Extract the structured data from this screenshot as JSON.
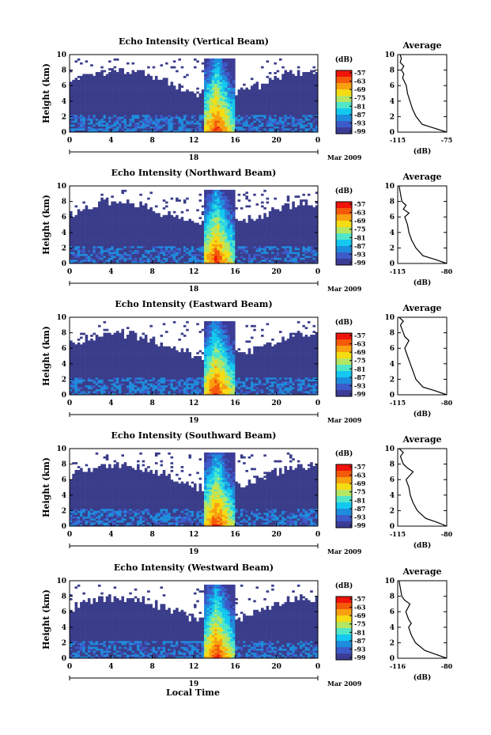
{
  "figure": {
    "bottom_label": "Local Time",
    "date_label": "Mar 2009",
    "colorbar_unit": "(dB)",
    "colorbar_ticks": [
      "-57",
      "-63",
      "-69",
      "-75",
      "-81",
      "-87",
      "-93",
      "-99"
    ],
    "colorscale": [
      "#f0140a",
      "#f55a0a",
      "#f8a010",
      "#f5dc14",
      "#b4e664",
      "#50e6c8",
      "#14c8f0",
      "#1e8cdc",
      "#3c5ac8",
      "#3c3c96"
    ],
    "background_echo": "#3a3d8a",
    "average_title": "Average",
    "average_xlabel": "(dB)"
  },
  "chart_data": [
    {
      "type": "heatmap",
      "title": "Echo Intensity (Vertical Beam)",
      "ylabel": "Height (km)",
      "x_ticks": [
        "0",
        "4",
        "8",
        "12",
        "16",
        "20",
        "0"
      ],
      "y_ticks": [
        "0",
        "2",
        "4",
        "6",
        "8",
        "10"
      ],
      "xlim": [
        0,
        24
      ],
      "ylim": [
        0,
        10
      ],
      "day_label": "18",
      "zlim_db": [
        -99,
        -57
      ],
      "storm_hours": [
        13,
        16
      ],
      "average": {
        "x_ticks": [
          "-115",
          "-75"
        ],
        "xlim": [
          -115,
          -75
        ],
        "y_ticks": [
          "0",
          "2",
          "4",
          "6",
          "8",
          "10"
        ],
        "profile": [
          [
            0,
            -75
          ],
          [
            0.5,
            -85
          ],
          [
            1,
            -95
          ],
          [
            2,
            -100
          ],
          [
            3,
            -103
          ],
          [
            4,
            -105
          ],
          [
            5,
            -107
          ],
          [
            6,
            -108
          ],
          [
            7,
            -111
          ],
          [
            7.5,
            -110
          ],
          [
            8,
            -112
          ],
          [
            8.5,
            -110
          ],
          [
            9,
            -113
          ],
          [
            9.5,
            -112
          ],
          [
            10,
            -113
          ]
        ]
      }
    },
    {
      "type": "heatmap",
      "title": "Echo Intensity (Northward Beam)",
      "ylabel": "Height (km)",
      "x_ticks": [
        "0",
        "4",
        "8",
        "12",
        "16",
        "20",
        "0"
      ],
      "y_ticks": [
        "0",
        "2",
        "4",
        "6",
        "8",
        "10"
      ],
      "xlim": [
        0,
        24
      ],
      "ylim": [
        0,
        10
      ],
      "day_label": "18",
      "zlim_db": [
        -99,
        -57
      ],
      "storm_hours": [
        13,
        16
      ],
      "average": {
        "x_ticks": [
          "-115",
          "-80"
        ],
        "xlim": [
          -115,
          -80
        ],
        "y_ticks": [
          "0",
          "2",
          "4",
          "6",
          "8",
          "10"
        ],
        "profile": [
          [
            0,
            -80
          ],
          [
            0.5,
            -88
          ],
          [
            1,
            -97
          ],
          [
            2,
            -102
          ],
          [
            3,
            -105
          ],
          [
            4,
            -107
          ],
          [
            5,
            -108
          ],
          [
            6,
            -110
          ],
          [
            6.5,
            -107
          ],
          [
            7,
            -111
          ],
          [
            7.5,
            -109
          ],
          [
            8,
            -112
          ],
          [
            9,
            -113
          ],
          [
            10,
            -114
          ]
        ]
      }
    },
    {
      "type": "heatmap",
      "title": "Echo Intensity (Eastward Beam)",
      "ylabel": "Height (km)",
      "x_ticks": [
        "0",
        "4",
        "8",
        "12",
        "16",
        "20",
        "0"
      ],
      "y_ticks": [
        "0",
        "2",
        "4",
        "6",
        "8",
        "10"
      ],
      "xlim": [
        0,
        24
      ],
      "ylim": [
        0,
        10
      ],
      "day_label": "19",
      "zlim_db": [
        -99,
        -57
      ],
      "storm_hours": [
        13,
        16
      ],
      "average": {
        "x_ticks": [
          "-115",
          "-80"
        ],
        "xlim": [
          -115,
          -80
        ],
        "y_ticks": [
          "0",
          "2",
          "4",
          "6",
          "8",
          "10"
        ],
        "profile": [
          [
            0,
            -80
          ],
          [
            0.5,
            -88
          ],
          [
            1,
            -97
          ],
          [
            2,
            -102
          ],
          [
            3,
            -104
          ],
          [
            4,
            -106
          ],
          [
            5,
            -108
          ],
          [
            6,
            -110
          ],
          [
            7,
            -107
          ],
          [
            7.5,
            -110
          ],
          [
            8,
            -111
          ],
          [
            9,
            -113
          ],
          [
            9.5,
            -111
          ],
          [
            10,
            -114
          ]
        ]
      }
    },
    {
      "type": "heatmap",
      "title": "Echo Intensity (Southward Beam)",
      "ylabel": "Height (km)",
      "x_ticks": [
        "0",
        "4",
        "8",
        "12",
        "16",
        "20",
        "0"
      ],
      "y_ticks": [
        "0",
        "2",
        "4",
        "6",
        "8",
        "10"
      ],
      "xlim": [
        0,
        24
      ],
      "ylim": [
        0,
        10
      ],
      "day_label": "19",
      "zlim_db": [
        -99,
        -57
      ],
      "storm_hours": [
        13,
        16
      ],
      "average": {
        "x_ticks": [
          "-115",
          "-80"
        ],
        "xlim": [
          -115,
          -80
        ],
        "y_ticks": [
          "0",
          "2",
          "4",
          "6",
          "8",
          "10"
        ],
        "profile": [
          [
            0,
            -80
          ],
          [
            0.5,
            -87
          ],
          [
            1,
            -95
          ],
          [
            2,
            -101
          ],
          [
            3,
            -104
          ],
          [
            4,
            -106
          ],
          [
            5,
            -107
          ],
          [
            6,
            -109
          ],
          [
            7,
            -104
          ],
          [
            7.5,
            -108
          ],
          [
            8,
            -111
          ],
          [
            9,
            -113
          ],
          [
            9.5,
            -111
          ],
          [
            10,
            -114
          ]
        ]
      }
    },
    {
      "type": "heatmap",
      "title": "Echo Intensity (Westward Beam)",
      "ylabel": "Height (km)",
      "x_ticks": [
        "0",
        "4",
        "8",
        "12",
        "16",
        "20",
        "0"
      ],
      "y_ticks": [
        "0",
        "2",
        "4",
        "6",
        "8",
        "10"
      ],
      "xlim": [
        0,
        24
      ],
      "ylim": [
        0,
        10
      ],
      "day_label": "19",
      "zlim_db": [
        -99,
        -57
      ],
      "storm_hours": [
        13,
        16
      ],
      "average": {
        "x_ticks": [
          "-116",
          "-80"
        ],
        "xlim": [
          -116,
          -80
        ],
        "y_ticks": [
          "0",
          "2",
          "4",
          "6",
          "8",
          "10"
        ],
        "profile": [
          [
            0,
            -80
          ],
          [
            0.5,
            -88
          ],
          [
            1,
            -96
          ],
          [
            2,
            -103
          ],
          [
            3,
            -106
          ],
          [
            4,
            -108
          ],
          [
            4.5,
            -106
          ],
          [
            5,
            -108
          ],
          [
            6,
            -110
          ],
          [
            7,
            -107
          ],
          [
            7.5,
            -111
          ],
          [
            8,
            -113
          ],
          [
            9,
            -114
          ],
          [
            10,
            -115
          ]
        ]
      }
    }
  ]
}
